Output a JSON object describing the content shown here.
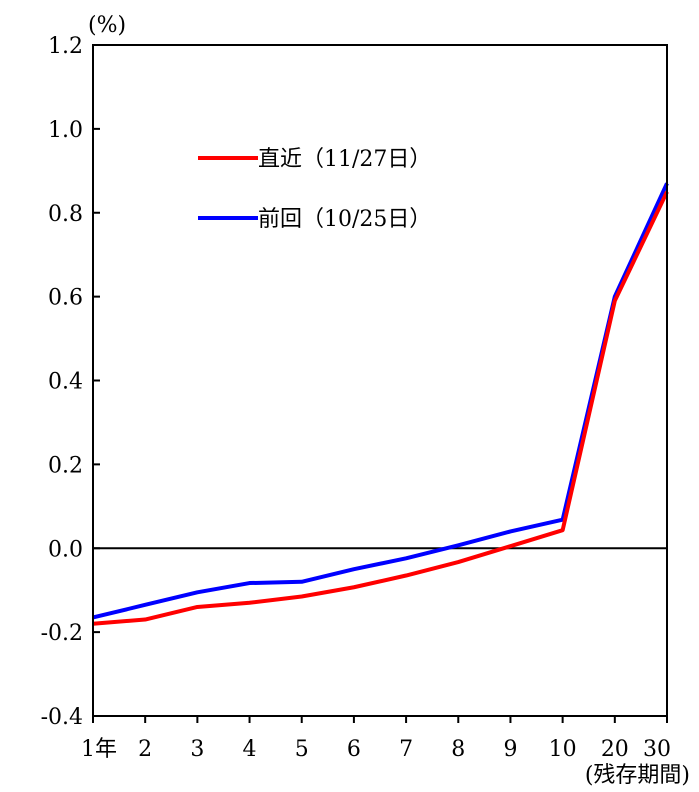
{
  "chart_data": {
    "type": "line",
    "unit_label": "(%)",
    "xlabel": "(残存期間)",
    "categories": [
      "1年",
      "2",
      "3",
      "4",
      "5",
      "6",
      "7",
      "8",
      "9",
      "10",
      "20",
      "30"
    ],
    "ylim": [
      -0.4,
      1.2
    ],
    "yticks": [
      "1.2",
      "1.0",
      "0.8",
      "0.6",
      "0.4",
      "0.2",
      "0.0",
      "-0.2",
      "-0.4"
    ],
    "ytick_values": [
      1.2,
      1.0,
      0.8,
      0.6,
      0.4,
      0.2,
      0.0,
      -0.2,
      -0.4
    ],
    "zero_line": true,
    "grid": false,
    "legend_position": "upper-left",
    "series": [
      {
        "name": "直近（11/27日）",
        "color": "#ff0000",
        "values": [
          -0.18,
          -0.17,
          -0.14,
          -0.13,
          -0.115,
          -0.093,
          -0.065,
          -0.033,
          0.005,
          0.043,
          0.59,
          0.85
        ]
      },
      {
        "name": "前回（10/25日）",
        "color": "#0000ff",
        "values": [
          -0.165,
          -0.135,
          -0.105,
          -0.083,
          -0.08,
          -0.05,
          -0.024,
          0.007,
          0.04,
          0.068,
          0.6,
          0.87
        ]
      }
    ]
  }
}
